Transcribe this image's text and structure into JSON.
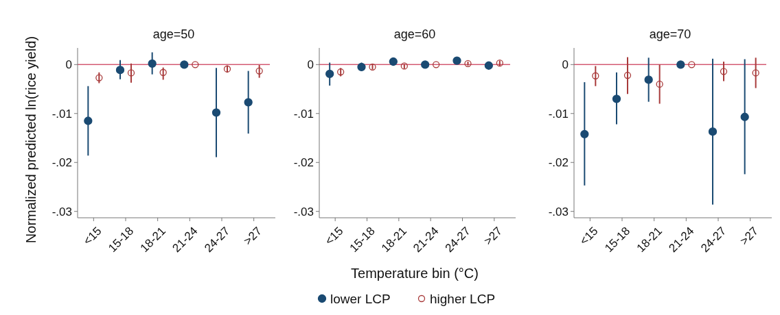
{
  "chart_data": [
    {
      "type": "scatter",
      "title": "age=50",
      "ylabel": "Normalized predicted ln(rice yield)",
      "categories": [
        "<15",
        "15-18",
        "18-21",
        "21-24",
        "24-27",
        ">27"
      ],
      "ylim": [
        -0.0313,
        0.0034
      ],
      "yticks": [
        {
          "value": 0,
          "label": "0"
        },
        {
          "value": -0.01,
          "label": "-.01"
        },
        {
          "value": -0.02,
          "label": "-.02"
        },
        {
          "value": -0.03,
          "label": "-.03"
        }
      ],
      "marker": "circle",
      "grid": false,
      "ref_lines": [
        {
          "axis": "y",
          "value": 0,
          "color": "#d45a73"
        }
      ],
      "series": [
        {
          "color": "#1a4a72",
          "values": [
            -0.0115,
            -0.0011,
            0.0002,
            0,
            -0.0098,
            -0.0077
          ],
          "errors": [
            [
              -0.0186,
              -0.0044
            ],
            [
              -0.003,
              0.0009
            ],
            [
              -0.002,
              0.0025
            ],
            null,
            [
              -0.0189,
              -0.0007
            ],
            [
              -0.0141,
              -0.0013
            ]
          ]
        },
        {
          "color": "#a83a3a",
          "values": [
            -0.0027,
            -0.0017,
            -0.0016,
            0,
            -0.0009,
            -0.0013
          ],
          "errors": [
            [
              -0.0038,
              -0.0016
            ],
            [
              -0.0037,
              0.0002
            ],
            [
              -0.0031,
              -0.0006
            ],
            null,
            [
              -0.0016,
              -0.0002
            ],
            [
              -0.0027,
              -0.0001
            ]
          ]
        }
      ]
    },
    {
      "type": "scatter",
      "title": "age=60",
      "xlabel": "Temperature bin (°C)",
      "categories": [
        "<15",
        "15-18",
        "18-21",
        "21-24",
        "24-27",
        ">27"
      ],
      "ylim": [
        -0.0313,
        0.0034
      ],
      "yticks": [
        {
          "value": 0,
          "label": "0"
        },
        {
          "value": -0.01,
          "label": "-.01"
        },
        {
          "value": -0.02,
          "label": "-.02"
        },
        {
          "value": -0.03,
          "label": "-.03"
        }
      ],
      "marker": "circle",
      "grid": false,
      "legend": "bottom",
      "ref_lines": [
        {
          "axis": "y",
          "value": 0,
          "color": "#d45a73"
        }
      ],
      "series": [
        {
          "name": "lower LCP",
          "color": "#1a4a72",
          "values": [
            -0.0019,
            -0.0005,
            0.0006,
            0,
            0.0008,
            -0.0002
          ],
          "errors": [
            [
              -0.0043,
              0.0004
            ],
            [
              -0.0013,
              0.0004
            ],
            null,
            null,
            null,
            null
          ]
        },
        {
          "name": "higher LCP",
          "color": "#a83a3a",
          "values": [
            -0.0015,
            -0.0005,
            -0.0003,
            0,
            0.0002,
            0.0003
          ],
          "errors": [
            [
              -0.0024,
              -0.0007
            ],
            [
              -0.001,
              0.0001
            ],
            [
              -0.0008,
              0.0001
            ],
            null,
            [
              -0.0002,
              0.0006
            ],
            [
              -0.0003,
              0.0008
            ]
          ]
        }
      ]
    },
    {
      "type": "scatter",
      "title": "age=70",
      "categories": [
        "<15",
        "15-18",
        "18-21",
        "21-24",
        "24-27",
        ">27"
      ],
      "ylim": [
        -0.0313,
        0.0034
      ],
      "yticks": [
        {
          "value": 0,
          "label": "0"
        },
        {
          "value": -0.01,
          "label": "-.01"
        },
        {
          "value": -0.02,
          "label": "-.02"
        },
        {
          "value": -0.03,
          "label": "-.03"
        }
      ],
      "marker": "circle",
      "grid": false,
      "ref_lines": [
        {
          "axis": "y",
          "value": 0,
          "color": "#d45a73"
        }
      ],
      "series": [
        {
          "color": "#1a4a72",
          "values": [
            -0.0142,
            -0.007,
            -0.0031,
            0,
            -0.0137,
            -0.0107
          ],
          "errors": [
            [
              -0.0247,
              -0.0036
            ],
            [
              -0.0122,
              -0.0016
            ],
            [
              -0.0076,
              0.0014
            ],
            null,
            [
              -0.0286,
              0.0012
            ],
            [
              -0.0224,
              0.0011
            ]
          ]
        },
        {
          "color": "#a83a3a",
          "values": [
            -0.0023,
            -0.0022,
            -0.004,
            0,
            -0.0014,
            -0.0017
          ],
          "errors": [
            [
              -0.0044,
              -0.0003
            ],
            [
              -0.006,
              0.0015
            ],
            [
              -0.008,
              0
            ],
            null,
            [
              -0.0034,
              0.0006
            ],
            [
              -0.0048,
              0.0014
            ]
          ]
        }
      ]
    }
  ]
}
